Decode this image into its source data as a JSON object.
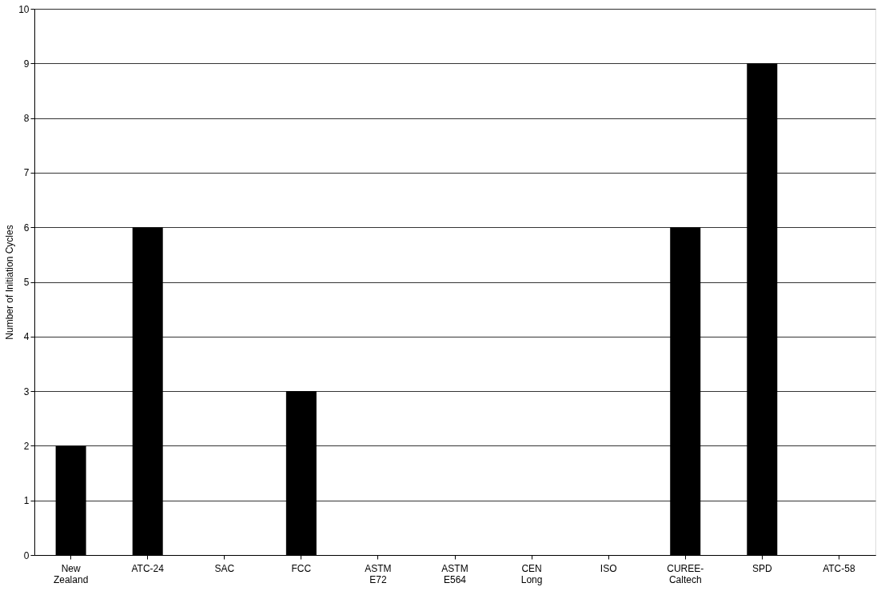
{
  "chart_data": {
    "type": "bar",
    "ylabel": "Number of Initiation Cycles",
    "categories": [
      "New Zealand",
      "ATC-24",
      "SAC",
      "FCC",
      "ASTM E72",
      "ASTM E564",
      "CEN Long",
      "ISO",
      "CUREE-Caltech",
      "SPD",
      "ATC-58"
    ],
    "values": [
      2,
      6,
      0,
      3,
      0,
      0,
      0,
      0,
      6,
      9,
      0
    ],
    "color": "#000000",
    "ylim": [
      0,
      10
    ],
    "yticks": [
      0,
      1,
      2,
      3,
      4,
      5,
      6,
      7,
      8,
      9,
      10
    ],
    "grid": "y"
  }
}
